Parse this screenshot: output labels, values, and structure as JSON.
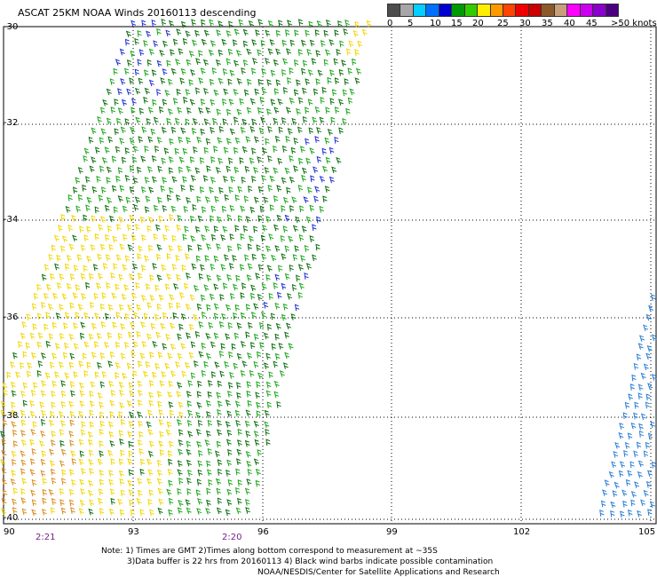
{
  "title": "ASCAT 25KM NOAA Winds 20160113 descending",
  "legend": {
    "segments": [
      {
        "color": "#4d4d4d"
      },
      {
        "color": "#a6a6a6"
      },
      {
        "color": "#00cfff"
      },
      {
        "color": "#0070ff"
      },
      {
        "color": "#0000d0"
      },
      {
        "color": "#009900"
      },
      {
        "color": "#33cc00"
      },
      {
        "color": "#ffee00"
      },
      {
        "color": "#ff9900"
      },
      {
        "color": "#ff4400"
      },
      {
        "color": "#ee0000"
      },
      {
        "color": "#cc0000"
      },
      {
        "color": "#8b5a2b"
      },
      {
        "color": "#c89f7a"
      },
      {
        "color": "#ff00ff"
      },
      {
        "color": "#cc00ee"
      },
      {
        "color": "#8a00cc"
      },
      {
        "color": "#4b0082"
      }
    ],
    "labels": [
      "0",
      "5",
      "10",
      "15",
      "20",
      "25",
      "30",
      "35",
      "40",
      "45",
      ">50 knots"
    ]
  },
  "map": {
    "lat_labels": [
      "-30",
      "-32",
      "-34",
      "-36",
      "-38",
      "-40"
    ],
    "lon_labels": [
      "90",
      "93",
      "96",
      "99",
      "102",
      "105"
    ],
    "time_labels": [
      "2:21",
      "2:20"
    ]
  },
  "notes": {
    "line1": "Note: 1) Times are GMT 2)Times along bottom correspond to measurement at ~35S",
    "line2": "3)Data buffer is 22 hrs from 20160113 4) Black wind barbs indicate possible contamination",
    "credit": "NOAA/NESDIS/Center for Satellite Applications and Research"
  },
  "colors": {
    "barb_yellow": "#f2d600",
    "barb_orange": "#d98a1a",
    "barb_green": "#1aa51a",
    "barb_darkgreen": "#0a6e0a",
    "barb_blue": "#2030d0",
    "barb_lightblue": "#2a7fd4",
    "grid": "#000000"
  }
}
